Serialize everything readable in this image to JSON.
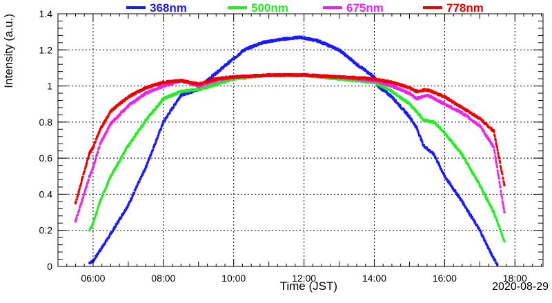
{
  "chart_data": {
    "type": "scatter",
    "xlabel": "Time (JST)",
    "ylabel": "Intensity (a.u.)",
    "date_label": "2020-08-29",
    "x_unit": "hours (JST)",
    "xlim": [
      5.0,
      18.8
    ],
    "ylim": [
      0,
      1.4
    ],
    "x_ticks": [
      {
        "value": 6,
        "label": "06:00"
      },
      {
        "value": 8,
        "label": "08:00"
      },
      {
        "value": 10,
        "label": "10:00"
      },
      {
        "value": 12,
        "label": "12:00"
      },
      {
        "value": 14,
        "label": "14:00"
      },
      {
        "value": 16,
        "label": "16:00"
      },
      {
        "value": 18,
        "label": "18:00"
      }
    ],
    "y_ticks": [
      {
        "value": 0,
        "label": "0"
      },
      {
        "value": 0.2,
        "label": "0.2"
      },
      {
        "value": 0.4,
        "label": "0.4"
      },
      {
        "value": 0.6,
        "label": "0.6"
      },
      {
        "value": 0.8,
        "label": "0.8"
      },
      {
        "value": 1.0,
        "label": "1"
      },
      {
        "value": 1.2,
        "label": "1.2"
      },
      {
        "value": 1.4,
        "label": "1.4"
      }
    ],
    "grid": true,
    "legend_position": "top",
    "series": [
      {
        "name": "368nm",
        "color": "#1a1aff",
        "points": [
          [
            5.9,
            0.02
          ],
          [
            6.0,
            0.03
          ],
          [
            6.2,
            0.09
          ],
          [
            6.5,
            0.18
          ],
          [
            7.0,
            0.34
          ],
          [
            7.5,
            0.55
          ],
          [
            8.0,
            0.8
          ],
          [
            8.5,
            0.95
          ],
          [
            9.0,
            0.98
          ],
          [
            9.3,
            1.04
          ],
          [
            9.8,
            1.12
          ],
          [
            10.3,
            1.2
          ],
          [
            10.8,
            1.24
          ],
          [
            11.4,
            1.26
          ],
          [
            11.9,
            1.27
          ],
          [
            12.4,
            1.25
          ],
          [
            13.0,
            1.2
          ],
          [
            13.5,
            1.12
          ],
          [
            14.0,
            1.05
          ],
          [
            14.1,
            1.0
          ],
          [
            14.5,
            0.94
          ],
          [
            15.0,
            0.83
          ],
          [
            15.2,
            0.77
          ],
          [
            15.4,
            0.67
          ],
          [
            15.7,
            0.62
          ],
          [
            16.0,
            0.5
          ],
          [
            16.5,
            0.36
          ],
          [
            17.0,
            0.2
          ],
          [
            17.3,
            0.08
          ],
          [
            17.5,
            0.01
          ]
        ]
      },
      {
        "name": "500nm",
        "color": "#22ee22",
        "points": [
          [
            5.9,
            0.2
          ],
          [
            6.0,
            0.24
          ],
          [
            6.2,
            0.36
          ],
          [
            6.5,
            0.5
          ],
          [
            7.0,
            0.67
          ],
          [
            7.5,
            0.81
          ],
          [
            8.0,
            0.93
          ],
          [
            8.5,
            0.97
          ],
          [
            9.0,
            0.98
          ],
          [
            9.5,
            1.01
          ],
          [
            10.0,
            1.04
          ],
          [
            10.5,
            1.05
          ],
          [
            11.0,
            1.06
          ],
          [
            12.0,
            1.06
          ],
          [
            12.5,
            1.05
          ],
          [
            13.0,
            1.04
          ],
          [
            13.5,
            1.03
          ],
          [
            14.0,
            1.02
          ],
          [
            14.5,
            0.97
          ],
          [
            15.0,
            0.9
          ],
          [
            15.2,
            0.86
          ],
          [
            15.4,
            0.81
          ],
          [
            15.7,
            0.8
          ],
          [
            16.0,
            0.74
          ],
          [
            16.5,
            0.62
          ],
          [
            17.0,
            0.45
          ],
          [
            17.4,
            0.3
          ],
          [
            17.7,
            0.14
          ]
        ]
      },
      {
        "name": "675nm",
        "color": "#ee22ee",
        "points": [
          [
            5.5,
            0.25
          ],
          [
            5.9,
            0.5
          ],
          [
            6.0,
            0.55
          ],
          [
            6.2,
            0.68
          ],
          [
            6.5,
            0.79
          ],
          [
            7.0,
            0.89
          ],
          [
            7.5,
            0.96
          ],
          [
            8.0,
            1.0
          ],
          [
            8.5,
            1.03
          ],
          [
            9.0,
            1.0
          ],
          [
            9.5,
            1.03
          ],
          [
            10.0,
            1.05
          ],
          [
            11.0,
            1.06
          ],
          [
            12.0,
            1.06
          ],
          [
            13.0,
            1.05
          ],
          [
            14.0,
            1.03
          ],
          [
            14.5,
            1.0
          ],
          [
            15.0,
            0.96
          ],
          [
            15.2,
            0.93
          ],
          [
            15.5,
            0.95
          ],
          [
            16.0,
            0.9
          ],
          [
            16.5,
            0.85
          ],
          [
            17.0,
            0.78
          ],
          [
            17.4,
            0.66
          ],
          [
            17.7,
            0.3
          ]
        ]
      },
      {
        "name": "778nm",
        "color": "#ee0000",
        "points": [
          [
            5.5,
            0.35
          ],
          [
            5.9,
            0.63
          ],
          [
            6.0,
            0.66
          ],
          [
            6.2,
            0.76
          ],
          [
            6.5,
            0.86
          ],
          [
            7.0,
            0.94
          ],
          [
            7.5,
            0.99
          ],
          [
            8.0,
            1.02
          ],
          [
            8.5,
            1.03
          ],
          [
            9.0,
            1.01
          ],
          [
            9.5,
            1.04
          ],
          [
            10.0,
            1.05
          ],
          [
            11.0,
            1.06
          ],
          [
            12.0,
            1.06
          ],
          [
            13.0,
            1.05
          ],
          [
            14.0,
            1.04
          ],
          [
            14.5,
            1.02
          ],
          [
            15.0,
            0.99
          ],
          [
            15.2,
            0.97
          ],
          [
            15.5,
            0.98
          ],
          [
            16.0,
            0.94
          ],
          [
            16.5,
            0.88
          ],
          [
            17.0,
            0.82
          ],
          [
            17.4,
            0.75
          ],
          [
            17.7,
            0.45
          ]
        ]
      }
    ]
  }
}
